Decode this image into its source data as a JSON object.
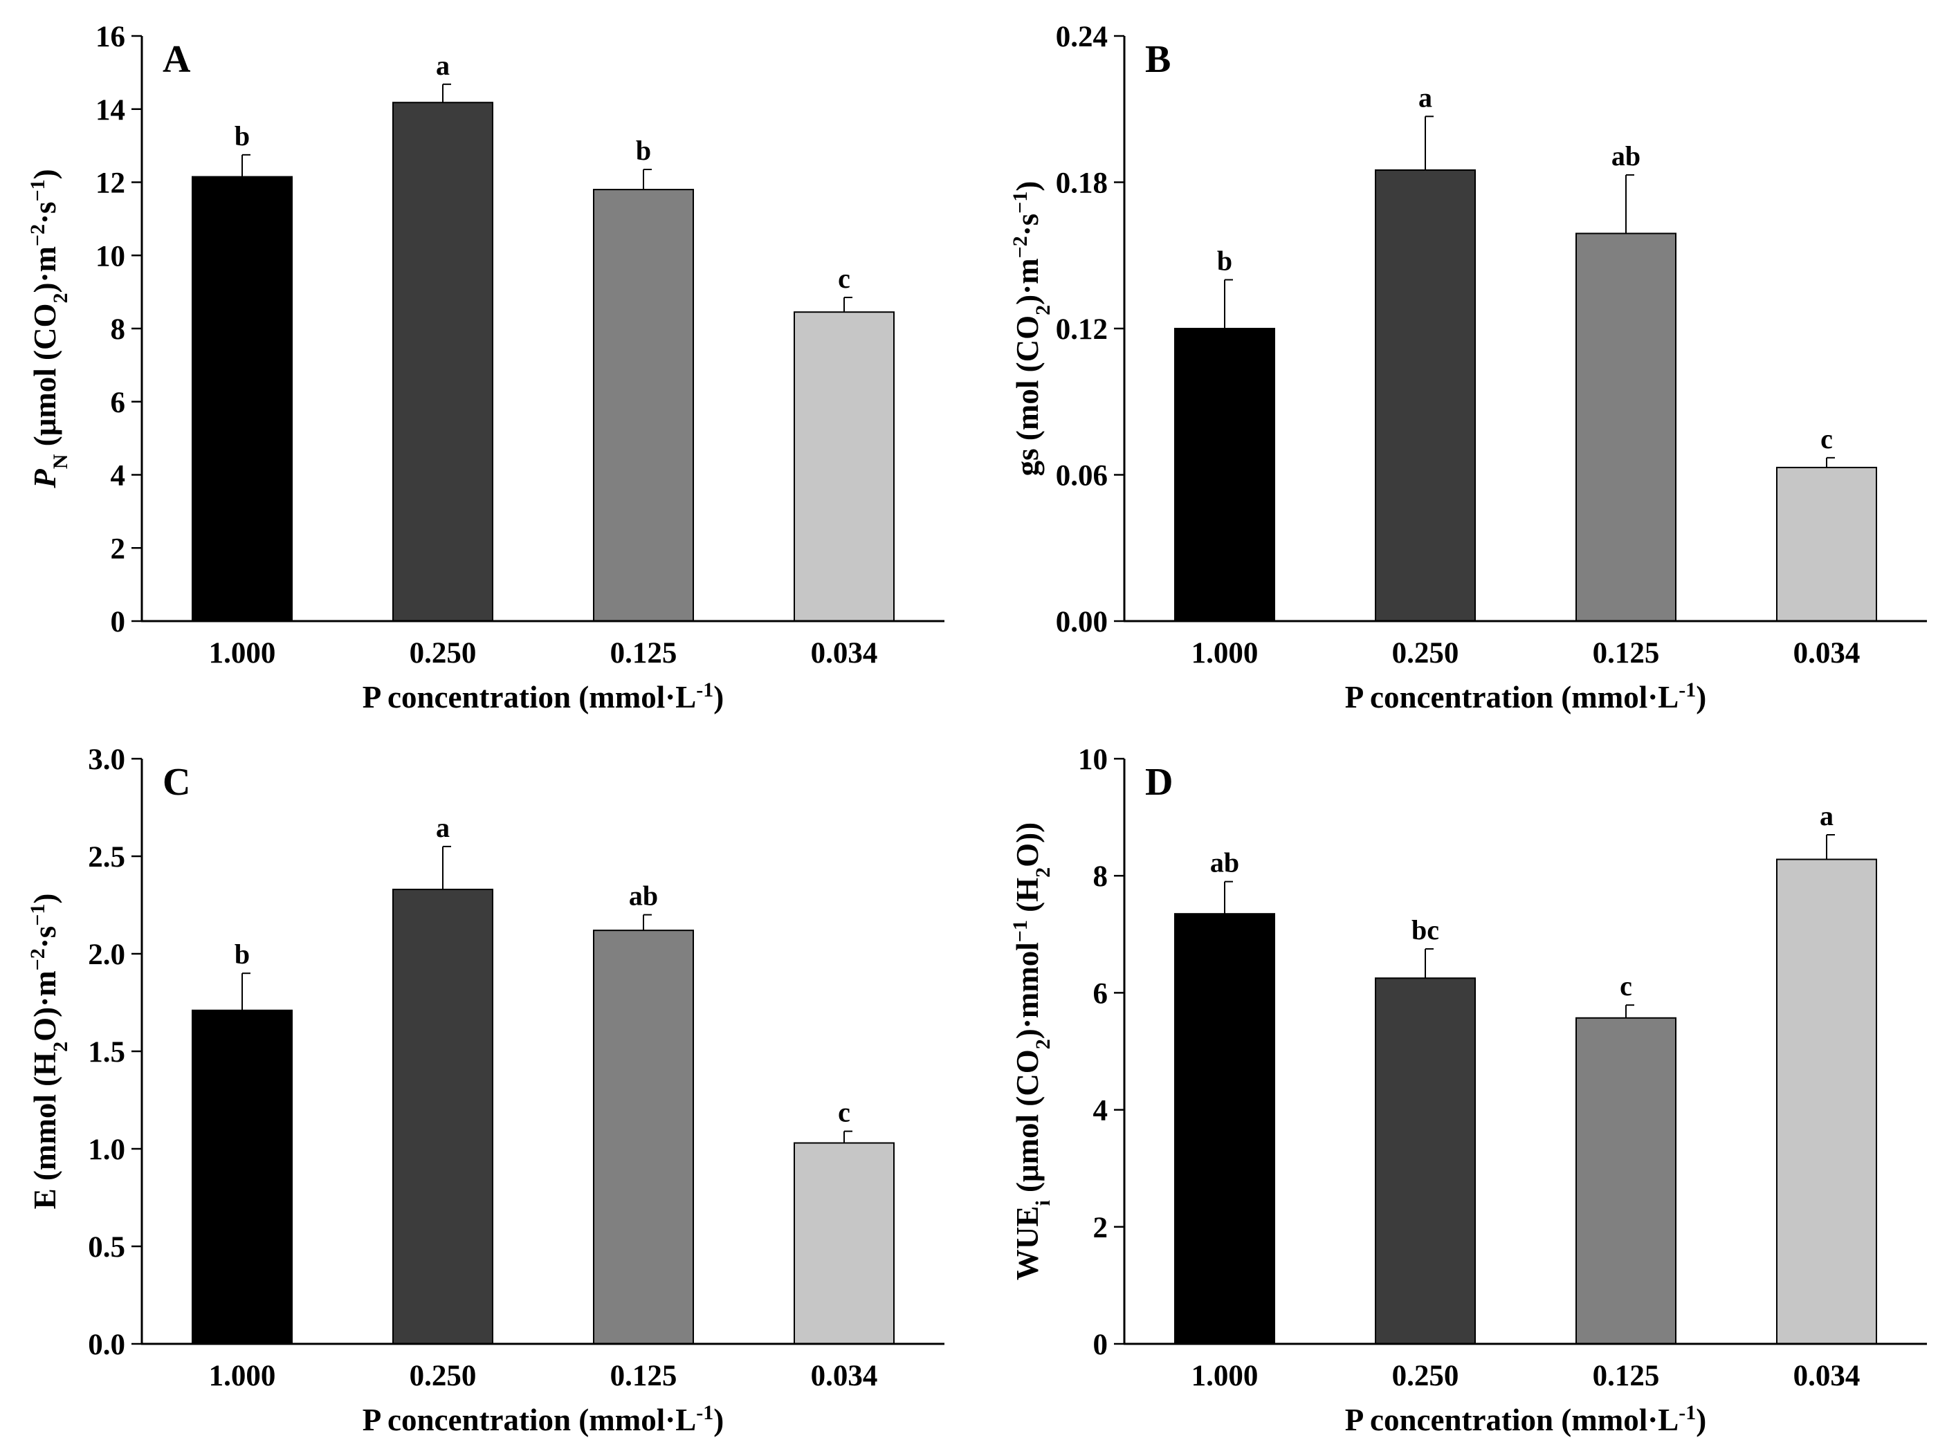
{
  "figure": {
    "panels": [
      "A",
      "B",
      "C",
      "D"
    ]
  },
  "chart_data": [
    {
      "panel": "A",
      "type": "bar",
      "categories": [
        "1.000",
        "0.250",
        "0.125",
        "0.034"
      ],
      "values": [
        12.15,
        14.18,
        11.8,
        8.45
      ],
      "errors": [
        0.6,
        0.5,
        0.55,
        0.4
      ],
      "sig_letters": [
        "b",
        "a",
        "b",
        "c"
      ],
      "bar_colors": [
        "#000000",
        "#3c3c3c",
        "#808080",
        "#c6c6c6"
      ],
      "ylim": [
        0,
        16
      ],
      "yticks": [
        "0",
        "2",
        "4",
        "6",
        "8",
        "10",
        "12",
        "14",
        "16"
      ],
      "xlabel": [
        {
          "t": "P concentration (mmol·L"
        },
        {
          "t": "-1",
          "s": "sup"
        },
        {
          "t": ")"
        }
      ],
      "ylabel": [
        {
          "t": "P",
          "i": true
        },
        {
          "t": "N",
          "s": "sub"
        },
        {
          "t": " (μmol (CO"
        },
        {
          "t": "2",
          "s": "sub"
        },
        {
          "t": ")·m"
        },
        {
          "t": "−2",
          "s": "sup"
        },
        {
          "t": "·s"
        },
        {
          "t": "−1",
          "s": "sup"
        },
        {
          "t": ")"
        }
      ]
    },
    {
      "panel": "B",
      "type": "bar",
      "categories": [
        "1.000",
        "0.250",
        "0.125",
        "0.034"
      ],
      "values": [
        0.12,
        0.185,
        0.159,
        0.063
      ],
      "errors": [
        0.02,
        0.022,
        0.024,
        0.004
      ],
      "sig_letters": [
        "b",
        "a",
        "ab",
        "c"
      ],
      "bar_colors": [
        "#000000",
        "#3c3c3c",
        "#808080",
        "#c6c6c6"
      ],
      "ylim": [
        0,
        0.24
      ],
      "yticks": [
        "0.00",
        "0.06",
        "0.12",
        "0.18",
        "0.24"
      ],
      "xlabel": [
        {
          "t": "P concentration (mmol·L"
        },
        {
          "t": "-1",
          "s": "sup"
        },
        {
          "t": ")"
        }
      ],
      "ylabel": [
        {
          "t": "gs (mol (CO"
        },
        {
          "t": "2",
          "s": "sub"
        },
        {
          "t": ")·m"
        },
        {
          "t": "−2",
          "s": "sup"
        },
        {
          "t": "·s"
        },
        {
          "t": "−1",
          "s": "sup"
        },
        {
          "t": ")"
        }
      ]
    },
    {
      "panel": "C",
      "type": "bar",
      "categories": [
        "1.000",
        "0.250",
        "0.125",
        "0.034"
      ],
      "values": [
        1.71,
        2.33,
        2.12,
        1.03
      ],
      "errors": [
        0.19,
        0.22,
        0.08,
        0.06
      ],
      "sig_letters": [
        "b",
        "a",
        "ab",
        "c"
      ],
      "bar_colors": [
        "#000000",
        "#3c3c3c",
        "#808080",
        "#c6c6c6"
      ],
      "ylim": [
        0,
        3.0
      ],
      "yticks": [
        "0.0",
        "0.5",
        "1.0",
        "1.5",
        "2.0",
        "2.5",
        "3.0"
      ],
      "xlabel": [
        {
          "t": "P concentration (mmol·L"
        },
        {
          "t": "-1",
          "s": "sup"
        },
        {
          "t": ")"
        }
      ],
      "ylabel": [
        {
          "t": "E (mmol (H"
        },
        {
          "t": "2",
          "s": "sub"
        },
        {
          "t": "O)·m"
        },
        {
          "t": "−2",
          "s": "sup"
        },
        {
          "t": "·s"
        },
        {
          "t": "−1",
          "s": "sup"
        },
        {
          "t": ")"
        }
      ]
    },
    {
      "panel": "D",
      "type": "bar",
      "categories": [
        "1.000",
        "0.250",
        "0.125",
        "0.034"
      ],
      "values": [
        7.35,
        6.25,
        5.57,
        8.28
      ],
      "errors": [
        0.55,
        0.5,
        0.22,
        0.42
      ],
      "sig_letters": [
        "ab",
        "bc",
        "c",
        "a"
      ],
      "bar_colors": [
        "#000000",
        "#3c3c3c",
        "#808080",
        "#c6c6c6"
      ],
      "ylim": [
        0,
        10
      ],
      "yticks": [
        "0",
        "2",
        "4",
        "6",
        "8",
        "10"
      ],
      "xlabel": [
        {
          "t": "P concentration (mmol·L"
        },
        {
          "t": "-1",
          "s": "sup"
        },
        {
          "t": ")"
        }
      ],
      "ylabel": [
        {
          "t": "WUE"
        },
        {
          "t": "i",
          "s": "sub"
        },
        {
          "t": " (μmol (CO"
        },
        {
          "t": "2",
          "s": "sub"
        },
        {
          "t": ")·mmol"
        },
        {
          "t": "−1",
          "s": "sup"
        },
        {
          "t": " (H"
        },
        {
          "t": "2",
          "s": "sub"
        },
        {
          "t": "O))"
        }
      ]
    }
  ]
}
